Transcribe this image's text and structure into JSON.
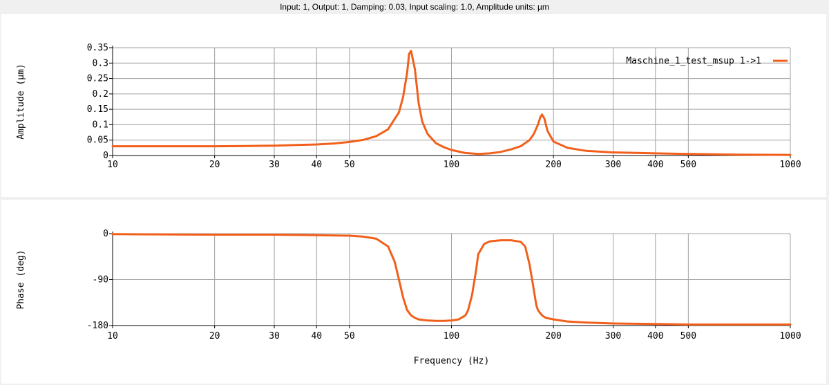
{
  "header": {
    "title": "Input: 1, Output: 1, Damping: 0.03, Input scaling: 1.0, Amplitude units: µm"
  },
  "colors": {
    "series": "#f25f1b",
    "grid": "#a0a0a0"
  },
  "chart_data": [
    {
      "type": "line",
      "xscale": "log",
      "xlim": [
        10,
        1000
      ],
      "ylim": [
        0,
        0.35
      ],
      "ylabel": "Amplitude (µm)",
      "xlabel": "",
      "xticks": [
        10,
        20,
        30,
        40,
        50,
        100,
        200,
        300,
        400,
        500,
        1000
      ],
      "xticklabels": [
        "10",
        "20",
        "30",
        "40",
        "50",
        "100",
        "200",
        "300",
        "400",
        "500",
        "1000"
      ],
      "yticks": [
        0,
        0.05,
        0.1,
        0.15,
        0.2,
        0.25,
        0.3,
        0.35
      ],
      "yticklabels": [
        "0",
        "0.05",
        "0.1",
        "0.15",
        "0.2",
        "0.25",
        "0.3",
        "0.35"
      ],
      "grid": true,
      "legend": "top-right",
      "series": [
        {
          "name": "Maschine_1_test_msup 1->1",
          "color": "#f25f1b",
          "x": [
            10,
            15,
            20,
            25,
            30,
            35,
            40,
            45,
            50,
            55,
            60,
            65,
            70,
            72,
            74,
            75,
            76,
            78,
            80,
            82,
            85,
            90,
            95,
            100,
            110,
            120,
            130,
            140,
            150,
            160,
            170,
            175,
            180,
            183,
            185,
            188,
            192,
            200,
            220,
            250,
            300,
            400,
            500,
            700,
            1000
          ],
          "y": [
            0.03,
            0.03,
            0.03,
            0.031,
            0.032,
            0.034,
            0.036,
            0.039,
            0.044,
            0.051,
            0.063,
            0.085,
            0.14,
            0.19,
            0.27,
            0.33,
            0.34,
            0.28,
            0.17,
            0.11,
            0.07,
            0.04,
            0.027,
            0.018,
            0.008,
            0.005,
            0.007,
            0.012,
            0.02,
            0.03,
            0.05,
            0.07,
            0.1,
            0.125,
            0.133,
            0.12,
            0.08,
            0.045,
            0.025,
            0.015,
            0.01,
            0.007,
            0.005,
            0.003,
            0.002
          ]
        }
      ]
    },
    {
      "type": "line",
      "xscale": "log",
      "xlim": [
        10,
        1000
      ],
      "ylim": [
        -180,
        0
      ],
      "ylabel": "Phase (deg)",
      "xlabel": "Frequency (Hz)",
      "xticks": [
        10,
        20,
        30,
        40,
        50,
        100,
        200,
        300,
        400,
        500,
        1000
      ],
      "xticklabels": [
        "10",
        "20",
        "30",
        "40",
        "50",
        "100",
        "200",
        "300",
        "400",
        "500",
        "1000"
      ],
      "yticks": [
        0,
        -90,
        -180
      ],
      "yticklabels": [
        "0",
        "-90",
        "-180"
      ],
      "grid": true,
      "series": [
        {
          "name": "Maschine_1_test_msup 1->1",
          "color": "#f25f1b",
          "x": [
            10,
            20,
            30,
            40,
            50,
            55,
            60,
            65,
            68,
            70,
            72,
            74,
            76,
            78,
            80,
            85,
            90,
            95,
            100,
            105,
            110,
            112,
            115,
            118,
            120,
            125,
            130,
            140,
            150,
            160,
            165,
            170,
            175,
            178,
            180,
            185,
            190,
            200,
            220,
            250,
            300,
            400,
            500,
            700,
            1000
          ],
          "y": [
            -1,
            -2,
            -2,
            -3,
            -4,
            -6,
            -10,
            -25,
            -55,
            -90,
            -125,
            -150,
            -160,
            -165,
            -168,
            -170,
            -171,
            -171,
            -170,
            -168,
            -160,
            -150,
            -120,
            -75,
            -40,
            -20,
            -15,
            -13,
            -13,
            -16,
            -25,
            -60,
            -110,
            -140,
            -150,
            -160,
            -165,
            -168,
            -172,
            -174,
            -176,
            -177,
            -178,
            -178,
            -178
          ]
        }
      ]
    }
  ]
}
